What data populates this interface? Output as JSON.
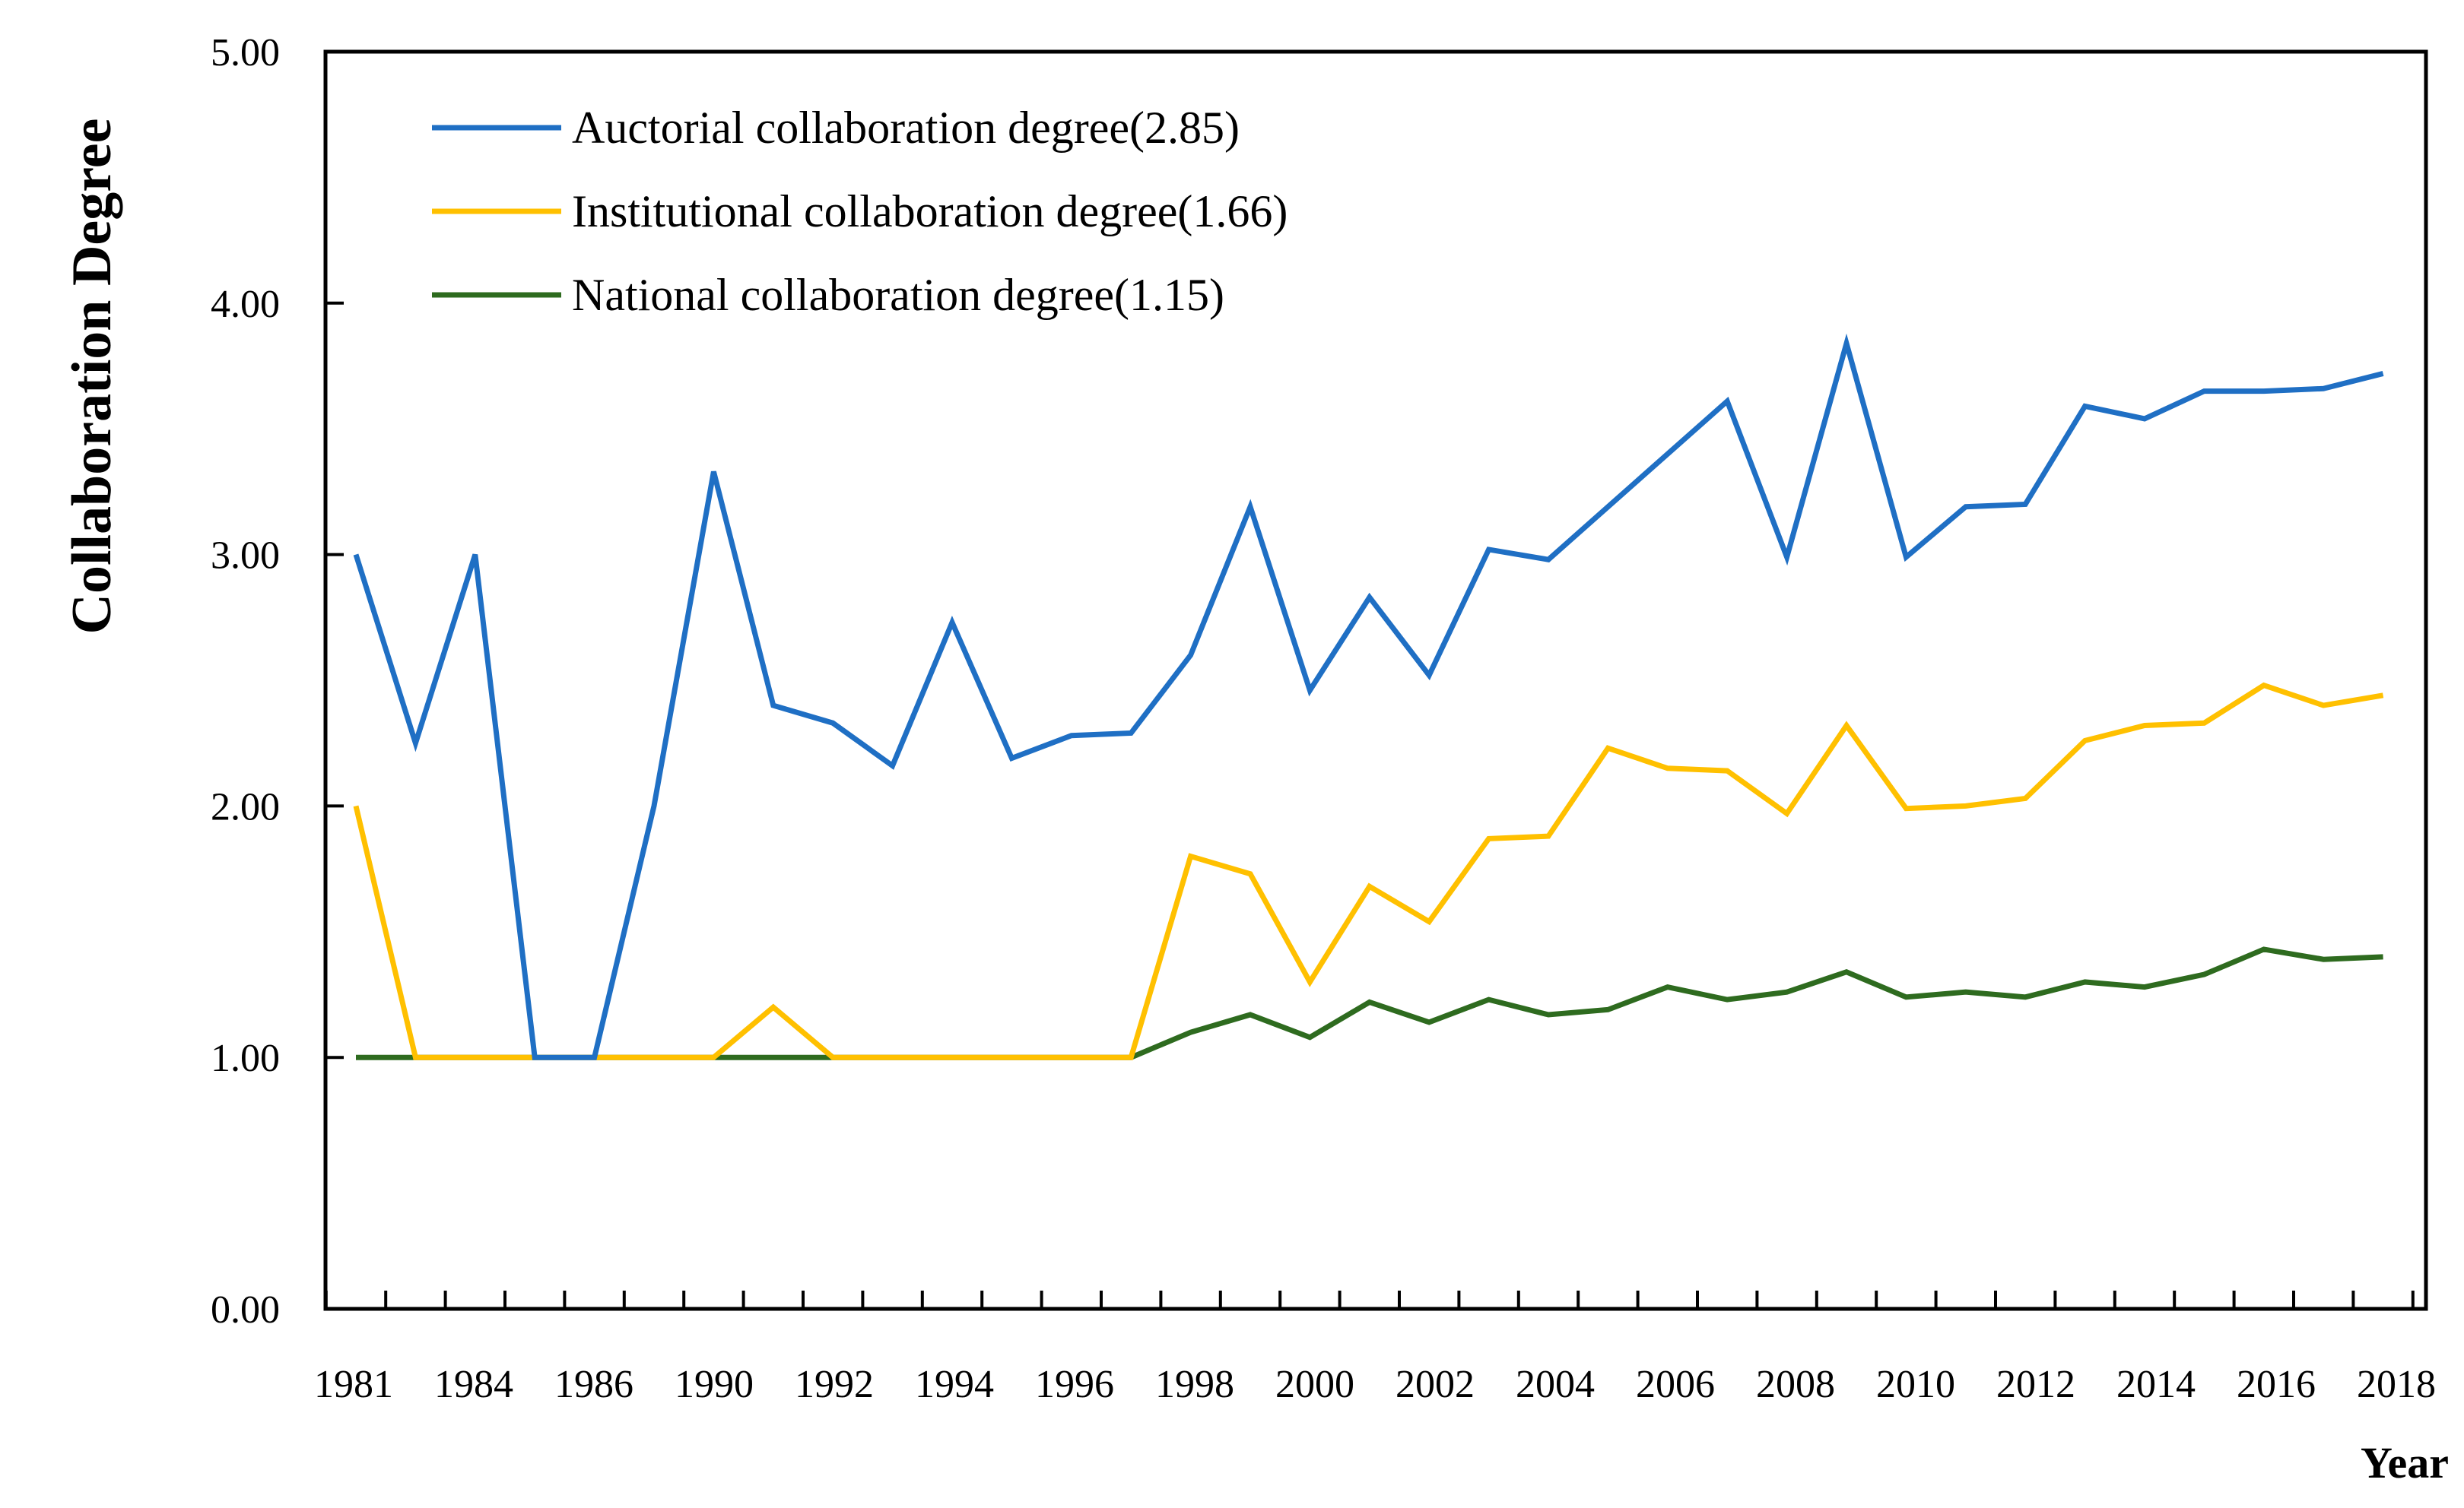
{
  "chart_data": {
    "type": "line",
    "title": "",
    "xlabel": "Year",
    "ylabel": "Collaboration Degree",
    "ylim": [
      0,
      5
    ],
    "yticks": [
      "0.00",
      "1.00",
      "2.00",
      "3.00",
      "4.00",
      "5.00"
    ],
    "grid": false,
    "legend_position": "top-left",
    "x": [
      "1981",
      "1983",
      "1984",
      "1985",
      "1986",
      "1989",
      "1990",
      "1991",
      "1992",
      "1993",
      "1994",
      "1995",
      "1996",
      "1997",
      "1998",
      "1999",
      "2000",
      "2001",
      "2002",
      "2003",
      "2004",
      "2005",
      "2006",
      "2007",
      "2008",
      "2009",
      "2010",
      "2011",
      "2012",
      "2013",
      "2014",
      "2015",
      "2016",
      "2017",
      "2018"
    ],
    "xtick_labels": [
      "1981",
      "1984",
      "1986",
      "1990",
      "1992",
      "1994",
      "1996",
      "1998",
      "2000",
      "2002",
      "2004",
      "2006",
      "2008",
      "2010",
      "2012",
      "2014",
      "2016",
      "2018"
    ],
    "series": [
      {
        "name": "Auctorial collaboration degree(2.85)",
        "color": "#1f6fc4",
        "values": [
          3.0,
          2.25,
          3.0,
          1.0,
          1.0,
          2.0,
          3.33,
          2.4,
          2.33,
          2.16,
          2.73,
          2.19,
          2.28,
          2.29,
          2.6,
          3.19,
          2.46,
          2.83,
          2.52,
          3.02,
          2.98,
          3.19,
          3.4,
          3.61,
          2.99,
          3.84,
          2.99,
          3.19,
          3.2,
          3.59,
          3.54,
          3.65,
          3.65,
          3.66,
          3.72
        ]
      },
      {
        "name": "Institutional collaboration degree(1.66)",
        "color": "#ffc000",
        "values": [
          2.0,
          1.0,
          1.0,
          1.0,
          1.0,
          1.0,
          1.0,
          1.2,
          1.0,
          1.0,
          1.0,
          1.0,
          1.0,
          1.0,
          1.8,
          1.73,
          1.3,
          1.68,
          1.54,
          1.87,
          1.88,
          2.23,
          2.15,
          2.14,
          1.97,
          2.32,
          1.99,
          2.0,
          2.03,
          2.26,
          2.32,
          2.33,
          2.48,
          2.4,
          2.44
        ]
      },
      {
        "name": "National collaboration degree(1.15)",
        "color": "#2e6b1f",
        "values": [
          1.0,
          1.0,
          1.0,
          1.0,
          1.0,
          1.0,
          1.0,
          1.0,
          1.0,
          1.0,
          1.0,
          1.0,
          1.0,
          1.0,
          1.1,
          1.17,
          1.08,
          1.22,
          1.14,
          1.23,
          1.17,
          1.19,
          1.28,
          1.23,
          1.26,
          1.34,
          1.24,
          1.26,
          1.24,
          1.3,
          1.28,
          1.33,
          1.43,
          1.39,
          1.4
        ]
      }
    ]
  }
}
